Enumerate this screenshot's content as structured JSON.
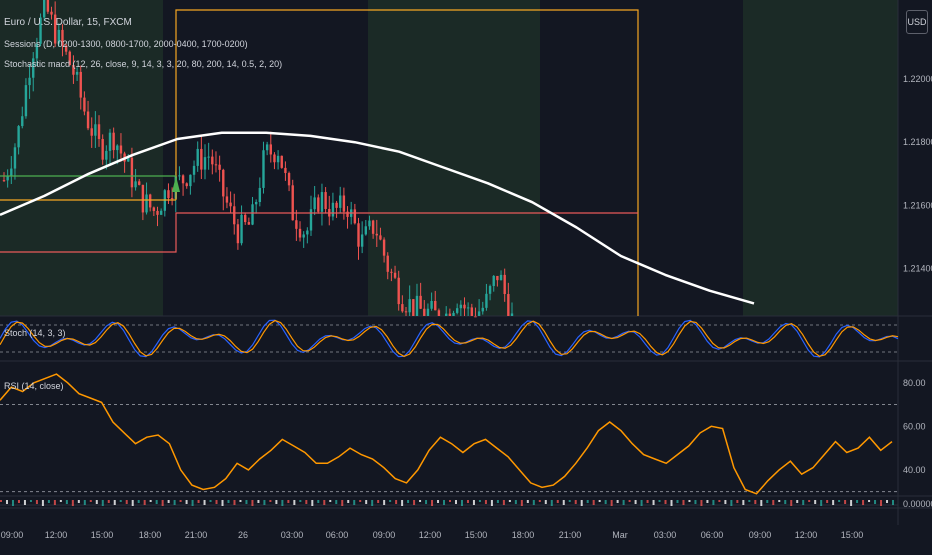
{
  "header": {
    "symbol_line": "Euro / U.S. Dollar, 15, FXCM",
    "sessions_line": "Sessions (D, 0200-1300, 0800-1700, 2000-0400, 1700-0200)",
    "macd_line": "Stochastic macd (12, 26, close, 9, 14, 3, 3, 20, 80, 200, 14, 0.5, 2, 20)"
  },
  "currency_badge": "USD",
  "panes": {
    "stoch_label": "Stoch (14, 3, 3)",
    "rsi_label": "RSI (14, close)"
  },
  "colors": {
    "background": "#131722",
    "session_shade": "#1b2a26",
    "candle_up": "#26a69a",
    "candle_down": "#ef5350",
    "ma": "#ffffff",
    "session_orange": "#f5a623",
    "session_red": "#e85a5a",
    "session_green": "#4caf50",
    "stoch_k": "#2962ff",
    "stoch_d": "#ff9800",
    "rsi": "#ff9800",
    "grid": "#2a2e39",
    "axis_text": "#b2b5be"
  },
  "chart_data": [
    {
      "type": "candlestick",
      "title": "Euro / U.S. Dollar, 15, FXCM",
      "y_ticks": [
        "1.22000",
        "1.21800",
        "1.21600",
        "1.21400"
      ],
      "ylim": [
        1.2125,
        1.2225
      ],
      "x_ticks": [
        "09:00",
        "12:00",
        "15:00",
        "18:00",
        "21:00",
        "26",
        "03:00",
        "06:00",
        "09:00",
        "12:00",
        "15:00",
        "18:00",
        "21:00",
        "Mar",
        "03:00",
        "06:00",
        "09:00",
        "12:00",
        "15:00"
      ],
      "candles_close_path": [
        1.2168,
        1.2182,
        1.2208,
        1.2223,
        1.2212,
        1.2203,
        1.2188,
        1.2178,
        1.2182,
        1.2172,
        1.2162,
        1.2158,
        1.2166,
        1.2168,
        1.2174,
        1.2176,
        1.2163,
        1.2152,
        1.2154,
        1.2176,
        1.2178,
        1.2158,
        1.2151,
        1.2163,
        1.2158,
        1.216,
        1.2148,
        1.2154,
        1.214,
        1.2131,
        1.2127,
        1.2126,
        1.2124,
        1.2131,
        1.2125,
        1.2128,
        1.2139,
        1.2124
      ],
      "moving_average_path": [
        1.2157,
        1.2163,
        1.217,
        1.2176,
        1.2181,
        1.2183,
        1.2183,
        1.2182,
        1.218,
        1.2177,
        1.2172,
        1.2167,
        1.2161,
        1.2153,
        1.2144,
        1.2138,
        1.2133,
        1.2129
      ]
    },
    {
      "type": "line",
      "title": "Stoch (14, 3, 3)",
      "ylim": [
        0,
        100
      ],
      "guide_levels": [
        80,
        20
      ]
    },
    {
      "type": "line",
      "title": "RSI (14, close)",
      "y_ticks": [
        "80.00",
        "60.00",
        "40.00"
      ],
      "ylim": [
        28,
        90
      ],
      "guide_levels": [
        70,
        30
      ],
      "series": [
        {
          "values": [
            72,
            78,
            76,
            80,
            82,
            84,
            80,
            75,
            73,
            71,
            62,
            57,
            52,
            55,
            56,
            52,
            40,
            33,
            31,
            32,
            36,
            43,
            40,
            45,
            49,
            54,
            51,
            48,
            43,
            43,
            46,
            50,
            47,
            45,
            41,
            36,
            34,
            40,
            49,
            55,
            52,
            48,
            52,
            54,
            50,
            46,
            40,
            34,
            32,
            33,
            37,
            43,
            50,
            58,
            62,
            58,
            52,
            47,
            45,
            43,
            47,
            51,
            57,
            60,
            59,
            41,
            31,
            29,
            35,
            40,
            44,
            38,
            41,
            47,
            53,
            48,
            50,
            55,
            49,
            53
          ]
        }
      ]
    },
    {
      "type": "line",
      "title": "Stochastic macd",
      "y_ticks": [
        "0.00000"
      ]
    }
  ]
}
